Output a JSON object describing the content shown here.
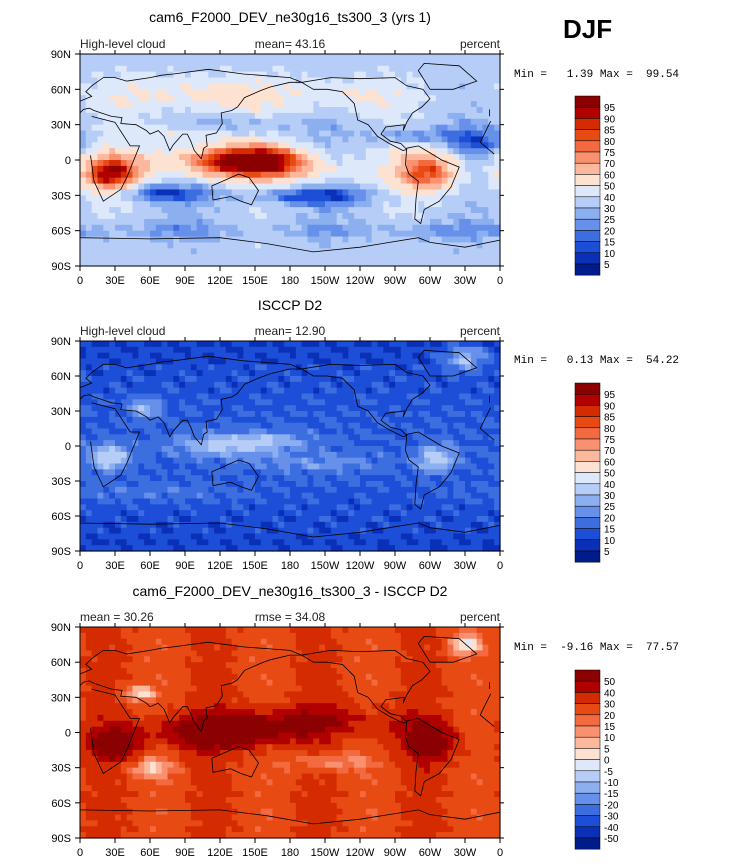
{
  "season": "DJF",
  "x_tick_labels": [
    "0",
    "30E",
    "60E",
    "90E",
    "120E",
    "150E",
    "180",
    "150W",
    "120W",
    "90W",
    "60W",
    "30W",
    "0"
  ],
  "y_tick_labels": [
    "90N",
    "60N",
    "30N",
    "0",
    "30S",
    "60S",
    "90S"
  ],
  "chart_data": [
    {
      "type": "heatmap",
      "title": "cam6_F2000_DEV_ne30g16_ts300_3 (yrs 1)",
      "left_label": "High-level cloud",
      "center_label": "mean=  43.16",
      "right_label": "percent",
      "stats_text": "Min =   1.39 Max =  99.54",
      "min": 1.39,
      "max": 99.54,
      "mean": 43.16,
      "xlim": [
        0,
        360
      ],
      "ylim": [
        -90,
        90
      ],
      "colorbar_levels": [
        "95",
        "90",
        "85",
        "80",
        "75",
        "70",
        "60",
        "50",
        "40",
        "30",
        "25",
        "20",
        "15",
        "10",
        "5"
      ],
      "colorbar_colors": [
        "#8b0000",
        "#b00000",
        "#d42c00",
        "#e84a14",
        "#f46a40",
        "#f99070",
        "#fcb89c",
        "#fde2d2",
        "#dde9fb",
        "#b6cdf7",
        "#8caff0",
        "#6690ea",
        "#3d6ee0",
        "#1c4ed8",
        "#0a30b8",
        "#001c8a"
      ]
    },
    {
      "type": "heatmap",
      "title": "ISCCP D2",
      "left_label": "High-level cloud",
      "center_label": "mean=  12.90",
      "right_label": "percent",
      "stats_text": "Min =   0.13 Max =  54.22",
      "min": 0.13,
      "max": 54.22,
      "mean": 12.9,
      "xlim": [
        0,
        360
      ],
      "ylim": [
        -90,
        90
      ],
      "colorbar_levels": [
        "95",
        "90",
        "85",
        "80",
        "75",
        "70",
        "60",
        "50",
        "40",
        "30",
        "25",
        "20",
        "15",
        "10",
        "5"
      ],
      "colorbar_colors": [
        "#8b0000",
        "#b00000",
        "#d42c00",
        "#e84a14",
        "#f46a40",
        "#f99070",
        "#fcb89c",
        "#fde2d2",
        "#dde9fb",
        "#b6cdf7",
        "#8caff0",
        "#6690ea",
        "#3d6ee0",
        "#1c4ed8",
        "#0a30b8",
        "#001c8a"
      ]
    },
    {
      "type": "heatmap",
      "title": "cam6_F2000_DEV_ne30g16_ts300_3 - ISCCP D2",
      "left_label": "mean =   30.26",
      "center_label": "rmse =   34.08",
      "right_label": "percent",
      "stats_text": "Min =  -9.16 Max =  77.57",
      "min": -9.16,
      "max": 77.57,
      "mean": 30.26,
      "rmse": 34.08,
      "xlim": [
        0,
        360
      ],
      "ylim": [
        -90,
        90
      ],
      "colorbar_levels": [
        "50",
        "40",
        "30",
        "20",
        "15",
        "10",
        "5",
        "0",
        "-5",
        "-10",
        "-15",
        "-20",
        "-30",
        "-40",
        "-50"
      ],
      "colorbar_colors": [
        "#8b0000",
        "#b00000",
        "#d42c00",
        "#e84a14",
        "#f46a40",
        "#f99070",
        "#fcb89c",
        "#fde2d2",
        "#dde9fb",
        "#b6cdf7",
        "#8caff0",
        "#6690ea",
        "#3d6ee0",
        "#1c4ed8",
        "#0a30b8",
        "#001c8a"
      ]
    }
  ]
}
